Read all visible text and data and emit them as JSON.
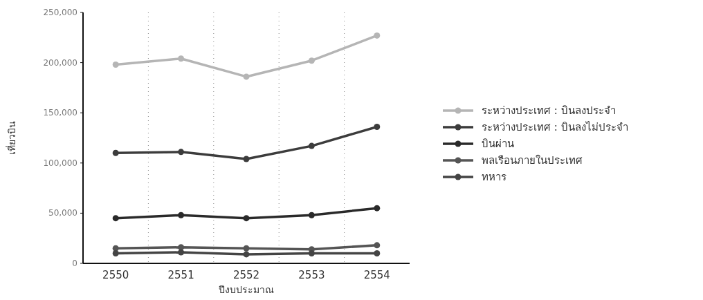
{
  "chart_data": {
    "type": "line",
    "xlabel": "ปีงบประมาณ",
    "ylabel": "เที่ยวบิน",
    "categories": [
      "2550",
      "2551",
      "2552",
      "2553",
      "2554"
    ],
    "ylim": [
      0,
      250000
    ],
    "yticks": [
      {
        "value": 0,
        "label": "0"
      },
      {
        "value": 50000,
        "label": "50,000"
      },
      {
        "value": 100000,
        "label": "100,000"
      },
      {
        "value": 150000,
        "label": "150,000"
      },
      {
        "value": 200000,
        "label": "200,000"
      },
      {
        "value": 250000,
        "label": "250,000"
      }
    ],
    "grid": "x",
    "legend": "right",
    "marker": "circle",
    "line_style": "solid",
    "series": [
      {
        "name": "ระหว่างประเทศ : บินลงประจำ",
        "color": "#b5b5b5",
        "values": [
          198000,
          204000,
          186000,
          202000,
          227000
        ]
      },
      {
        "name": "ระหว่างประเทศ : บินลงไม่ประจำ",
        "color": "#3c3c3c",
        "values": [
          110000,
          111000,
          104000,
          117000,
          136000
        ]
      },
      {
        "name": "บินผ่าน",
        "color": "#2a2a2a",
        "values": [
          45000,
          48000,
          45000,
          48000,
          55000
        ]
      },
      {
        "name": "พลเรือนภายในประเทศ",
        "color": "#555555",
        "values": [
          15000,
          16000,
          15000,
          14000,
          18000
        ]
      },
      {
        "name": "ทหาร",
        "color": "#444444",
        "values": [
          10000,
          11000,
          9000,
          10000,
          10000
        ]
      }
    ]
  }
}
